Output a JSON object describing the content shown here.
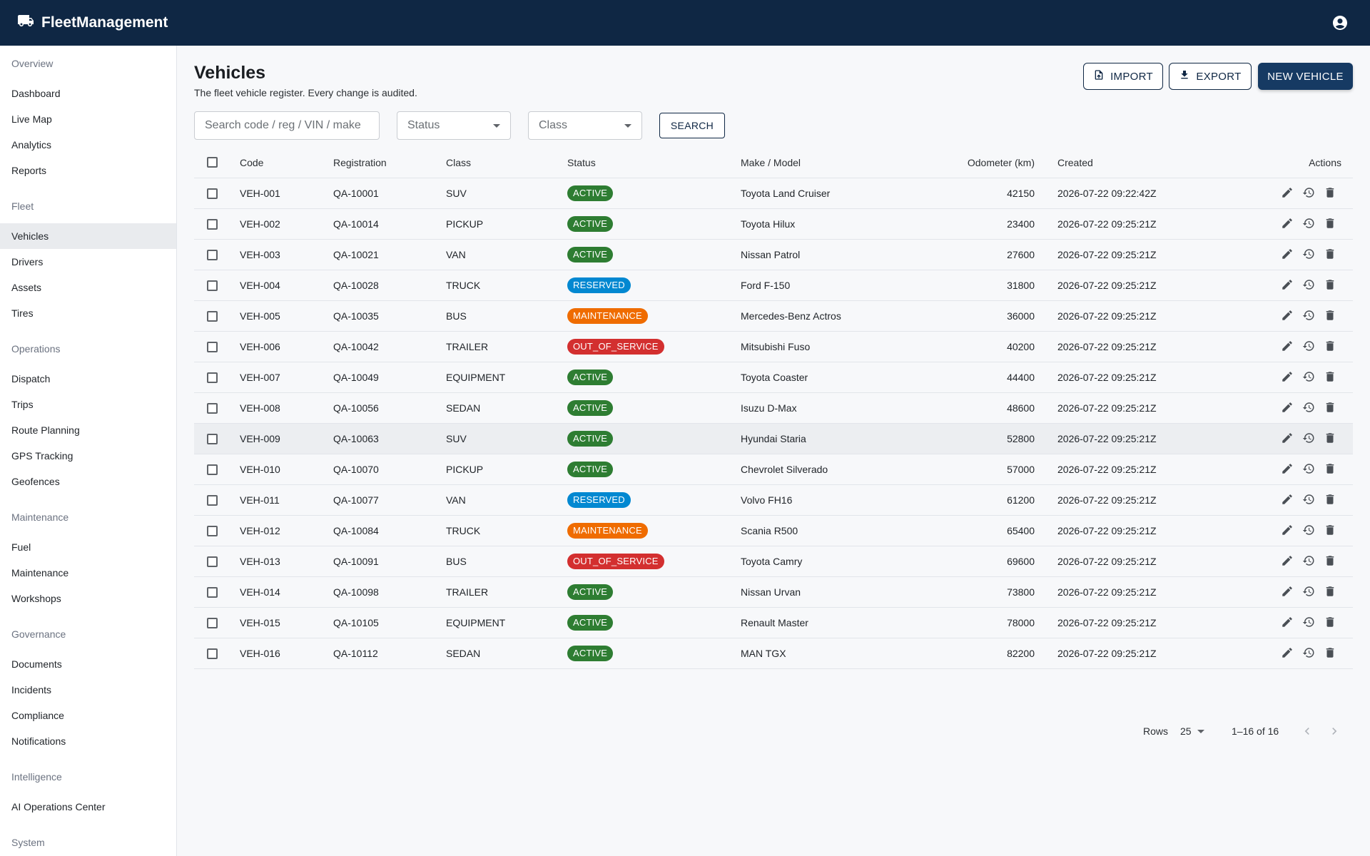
{
  "app": {
    "title": "FleetManagement",
    "brand_icon": "truck-icon",
    "account_icon": "account-circle-icon",
    "colors": {
      "header": "#0f2744",
      "primary": "#163a63",
      "active": "#2e7d32",
      "reserved": "#0288d1",
      "maintenance": "#ef6c00",
      "out_of_service": "#d32f2f"
    }
  },
  "sidebar": {
    "sections": [
      {
        "title": "Overview",
        "items": [
          "Dashboard",
          "Live Map",
          "Analytics",
          "Reports"
        ]
      },
      {
        "title": "Fleet",
        "items": [
          "Vehicles",
          "Drivers",
          "Assets",
          "Tires"
        ]
      },
      {
        "title": "Operations",
        "items": [
          "Dispatch",
          "Trips",
          "Route Planning",
          "GPS Tracking",
          "Geofences"
        ]
      },
      {
        "title": "Maintenance",
        "items": [
          "Fuel",
          "Maintenance",
          "Workshops"
        ]
      },
      {
        "title": "Governance",
        "items": [
          "Documents",
          "Incidents",
          "Compliance",
          "Notifications"
        ]
      },
      {
        "title": "Intelligence",
        "items": [
          "AI Operations Center"
        ]
      },
      {
        "title": "System",
        "items": []
      }
    ],
    "active_item": "Vehicles"
  },
  "page": {
    "title": "Vehicles",
    "subtitle": "The fleet vehicle register. Every change is audited.",
    "import_label": "IMPORT",
    "export_label": "EXPORT",
    "new_label": "NEW VEHICLE"
  },
  "filters": {
    "search_placeholder": "Search code / reg / VIN / make",
    "status_placeholder": "Status",
    "class_placeholder": "Class",
    "search_button": "SEARCH"
  },
  "table": {
    "headers": {
      "code": "Code",
      "registration": "Registration",
      "class": "Class",
      "status": "Status",
      "make_model": "Make / Model",
      "odometer": "Odometer (km)",
      "created": "Created",
      "actions": "Actions"
    },
    "action_icons": [
      "edit-icon",
      "history-icon",
      "delete-icon"
    ],
    "rows": [
      {
        "code": "VEH-001",
        "registration": "QA-10001",
        "class": "SUV",
        "status": "ACTIVE",
        "make_model": "Toyota Land Cruiser",
        "odometer": "42150",
        "created": "2026-07-22 09:22:42Z"
      },
      {
        "code": "VEH-002",
        "registration": "QA-10014",
        "class": "PICKUP",
        "status": "ACTIVE",
        "make_model": "Toyota Hilux",
        "odometer": "23400",
        "created": "2026-07-22 09:25:21Z"
      },
      {
        "code": "VEH-003",
        "registration": "QA-10021",
        "class": "VAN",
        "status": "ACTIVE",
        "make_model": "Nissan Patrol",
        "odometer": "27600",
        "created": "2026-07-22 09:25:21Z"
      },
      {
        "code": "VEH-004",
        "registration": "QA-10028",
        "class": "TRUCK",
        "status": "RESERVED",
        "make_model": "Ford F-150",
        "odometer": "31800",
        "created": "2026-07-22 09:25:21Z"
      },
      {
        "code": "VEH-005",
        "registration": "QA-10035",
        "class": "BUS",
        "status": "MAINTENANCE",
        "make_model": "Mercedes-Benz Actros",
        "odometer": "36000",
        "created": "2026-07-22 09:25:21Z"
      },
      {
        "code": "VEH-006",
        "registration": "QA-10042",
        "class": "TRAILER",
        "status": "OUT_OF_SERVICE",
        "make_model": "Mitsubishi Fuso",
        "odometer": "40200",
        "created": "2026-07-22 09:25:21Z"
      },
      {
        "code": "VEH-007",
        "registration": "QA-10049",
        "class": "EQUIPMENT",
        "status": "ACTIVE",
        "make_model": "Toyota Coaster",
        "odometer": "44400",
        "created": "2026-07-22 09:25:21Z"
      },
      {
        "code": "VEH-008",
        "registration": "QA-10056",
        "class": "SEDAN",
        "status": "ACTIVE",
        "make_model": "Isuzu D-Max",
        "odometer": "48600",
        "created": "2026-07-22 09:25:21Z"
      },
      {
        "code": "VEH-009",
        "registration": "QA-10063",
        "class": "SUV",
        "status": "ACTIVE",
        "make_model": "Hyundai Staria",
        "odometer": "52800",
        "created": "2026-07-22 09:25:21Z"
      },
      {
        "code": "VEH-010",
        "registration": "QA-10070",
        "class": "PICKUP",
        "status": "ACTIVE",
        "make_model": "Chevrolet Silverado",
        "odometer": "57000",
        "created": "2026-07-22 09:25:21Z"
      },
      {
        "code": "VEH-011",
        "registration": "QA-10077",
        "class": "VAN",
        "status": "RESERVED",
        "make_model": "Volvo FH16",
        "odometer": "61200",
        "created": "2026-07-22 09:25:21Z"
      },
      {
        "code": "VEH-012",
        "registration": "QA-10084",
        "class": "TRUCK",
        "status": "MAINTENANCE",
        "make_model": "Scania R500",
        "odometer": "65400",
        "created": "2026-07-22 09:25:21Z"
      },
      {
        "code": "VEH-013",
        "registration": "QA-10091",
        "class": "BUS",
        "status": "OUT_OF_SERVICE",
        "make_model": "Toyota Camry",
        "odometer": "69600",
        "created": "2026-07-22 09:25:21Z"
      },
      {
        "code": "VEH-014",
        "registration": "QA-10098",
        "class": "TRAILER",
        "status": "ACTIVE",
        "make_model": "Nissan Urvan",
        "odometer": "73800",
        "created": "2026-07-22 09:25:21Z"
      },
      {
        "code": "VEH-015",
        "registration": "QA-10105",
        "class": "EQUIPMENT",
        "status": "ACTIVE",
        "make_model": "Renault Master",
        "odometer": "78000",
        "created": "2026-07-22 09:25:21Z"
      },
      {
        "code": "VEH-016",
        "registration": "QA-10112",
        "class": "SEDAN",
        "status": "ACTIVE",
        "make_model": "MAN TGX",
        "odometer": "82200",
        "created": "2026-07-22 09:25:21Z"
      }
    ],
    "hovered_row": 9
  },
  "pagination": {
    "rows_label": "Rows",
    "rows_per_page": "25",
    "range": "1–16 of 16",
    "prev_icon": "chevron-left-icon",
    "next_icon": "chevron-right-icon"
  }
}
